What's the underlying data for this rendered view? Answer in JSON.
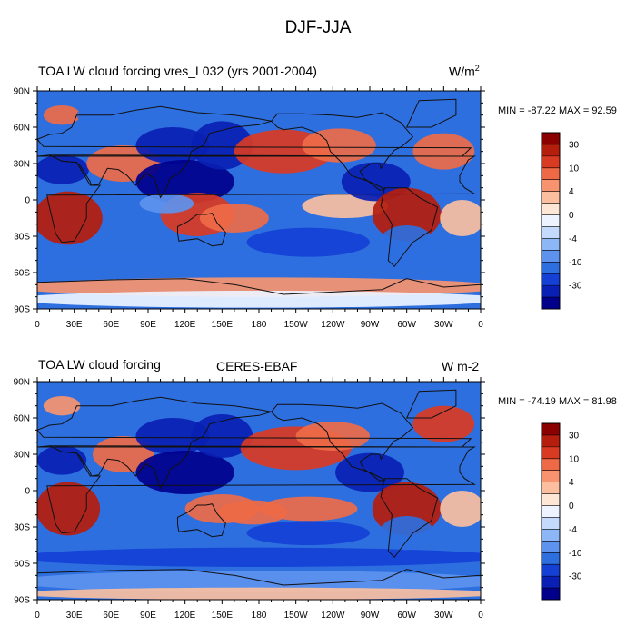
{
  "figure": {
    "title": "DJF-JJA"
  },
  "colors": {
    "ocean_base": "#2e6fe0",
    "coast": "#111111",
    "levels": [
      "#00008b",
      "#0a1fb3",
      "#1440d6",
      "#2e6fe0",
      "#5d93ee",
      "#8cb6f5",
      "#c3dafc",
      "#eef4ff",
      "#fde6d6",
      "#fbbf9f",
      "#f7946f",
      "#ee6a46",
      "#d93a22",
      "#b51d0c",
      "#8b0000"
    ]
  },
  "panels": [
    {
      "title": "TOA LW cloud forcing vres_L032 (yrs 2001-2004)",
      "center_title": "",
      "units_main": "W/m",
      "units_sup": "2",
      "min_max": "MIN = -87.22 MAX =  92.59"
    },
    {
      "title": "TOA LW cloud forcing",
      "center_title": "CERES-EBAF",
      "units_main": "W m-2",
      "units_sup": "",
      "min_max": "MIN = -74.19 MAX =  81.98"
    }
  ],
  "axes": {
    "lat_labels": [
      "90N",
      "60N",
      "30N",
      "0",
      "30S",
      "60S",
      "90S"
    ],
    "lon_labels": [
      "0",
      "30E",
      "60E",
      "90E",
      "120E",
      "150E",
      "180",
      "150W",
      "120W",
      "90W",
      "60W",
      "30W",
      "0"
    ]
  },
  "colorbar": {
    "labels": [
      "30",
      "10",
      "4",
      "0",
      "-4",
      "-10",
      "-30"
    ]
  },
  "chart_data": [
    {
      "type": "heatmap",
      "title": "TOA LW cloud forcing vres_L032 (yrs 2001-2004)",
      "units": "W/m2",
      "ylim": [
        -90,
        90
      ],
      "xlim": [
        0,
        360
      ],
      "levels": [
        -30,
        -10,
        -4,
        0,
        4,
        10,
        30
      ],
      "min": -87.22,
      "max": 92.59,
      "regions": [
        {
          "lon": 25,
          "lat": -15,
          "value": 40
        },
        {
          "lon": 300,
          "lat": -12,
          "value": 40
        },
        {
          "lon": 140,
          "lat": -15,
          "value": 35
        },
        {
          "lon": 210,
          "lat": 40,
          "value": 20
        },
        {
          "lon": 330,
          "lat": 40,
          "value": 20
        },
        {
          "lon": 120,
          "lat": 15,
          "value": -30
        },
        {
          "lon": 260,
          "lat": 15,
          "value": -25
        },
        {
          "lon": 180,
          "lat": -45,
          "value": -10
        },
        {
          "lon": 180,
          "lat": -75,
          "value": 10
        }
      ]
    },
    {
      "type": "heatmap",
      "title": "TOA LW cloud forcing",
      "subtitle": "CERES-EBAF",
      "units": "W m-2",
      "ylim": [
        -90,
        90
      ],
      "xlim": [
        0,
        360
      ],
      "levels": [
        -30,
        -10,
        -4,
        0,
        4,
        10,
        30
      ],
      "min": -74.19,
      "max": 81.98,
      "regions": [
        {
          "lon": 25,
          "lat": -15,
          "value": 40
        },
        {
          "lon": 300,
          "lat": -15,
          "value": 35
        },
        {
          "lon": 140,
          "lat": -15,
          "value": 20
        },
        {
          "lon": 210,
          "lat": 35,
          "value": 25
        },
        {
          "lon": 330,
          "lat": 55,
          "value": 25
        },
        {
          "lon": 120,
          "lat": 20,
          "value": -30
        },
        {
          "lon": 270,
          "lat": 15,
          "value": -20
        },
        {
          "lon": 180,
          "lat": -45,
          "value": -10
        },
        {
          "lon": 180,
          "lat": -80,
          "value": -4
        }
      ]
    }
  ]
}
